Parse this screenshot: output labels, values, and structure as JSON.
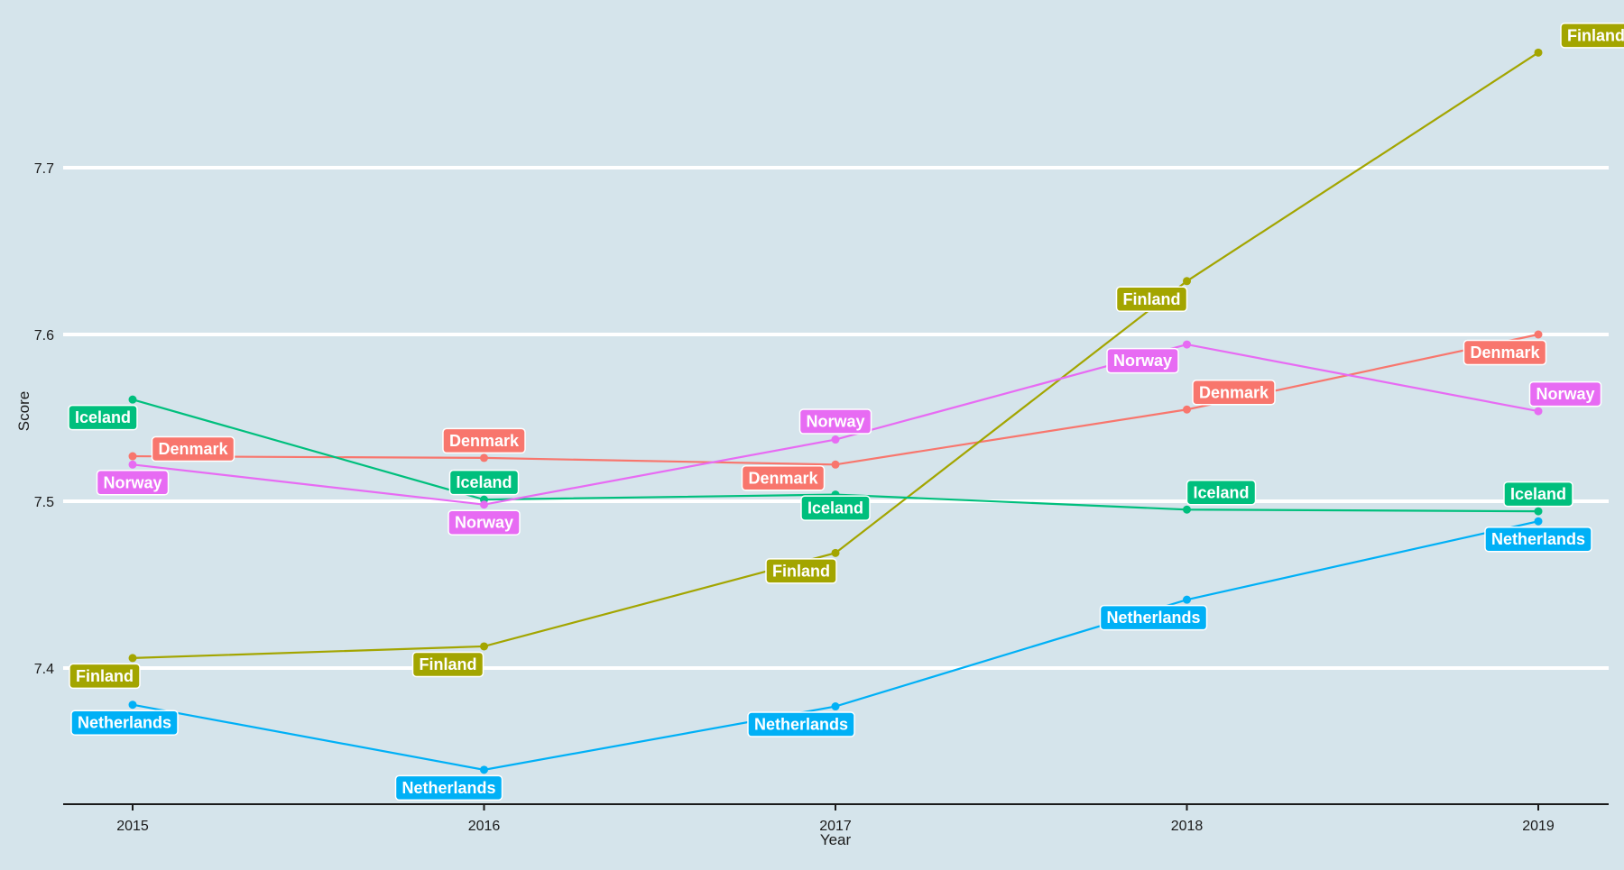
{
  "chart_data": {
    "type": "line",
    "title": "",
    "xlabel": "Year",
    "ylabel": "Score",
    "x": [
      2015,
      2016,
      2017,
      2018,
      2019
    ],
    "x_tick_labels": [
      "2015",
      "2016",
      "2017",
      "2018",
      "2019"
    ],
    "y_ticks": [
      7.4,
      7.5,
      7.6,
      7.7
    ],
    "y_tick_labels": [
      "7.4",
      "7.5",
      "7.6",
      "7.7"
    ],
    "ylim": [
      7.32,
      7.79
    ],
    "grid": "horizontal major lines only",
    "legend": "none (direct point labels)",
    "background_color": "#d5e4eb",
    "series": [
      {
        "name": "Denmark",
        "color": "#f8766d",
        "values": [
          7.527,
          7.526,
          7.522,
          7.555,
          7.6
        ]
      },
      {
        "name": "Finland",
        "color": "#a3a500",
        "values": [
          7.406,
          7.413,
          7.469,
          7.632,
          7.769
        ]
      },
      {
        "name": "Iceland",
        "color": "#00bf7d",
        "values": [
          7.561,
          7.501,
          7.504,
          7.495,
          7.494
        ]
      },
      {
        "name": "Netherlands",
        "color": "#00b0f6",
        "values": [
          7.378,
          7.339,
          7.377,
          7.441,
          7.488
        ]
      },
      {
        "name": "Norway",
        "color": "#e76bf3",
        "values": [
          7.522,
          7.498,
          7.537,
          7.594,
          7.554
        ]
      }
    ]
  }
}
